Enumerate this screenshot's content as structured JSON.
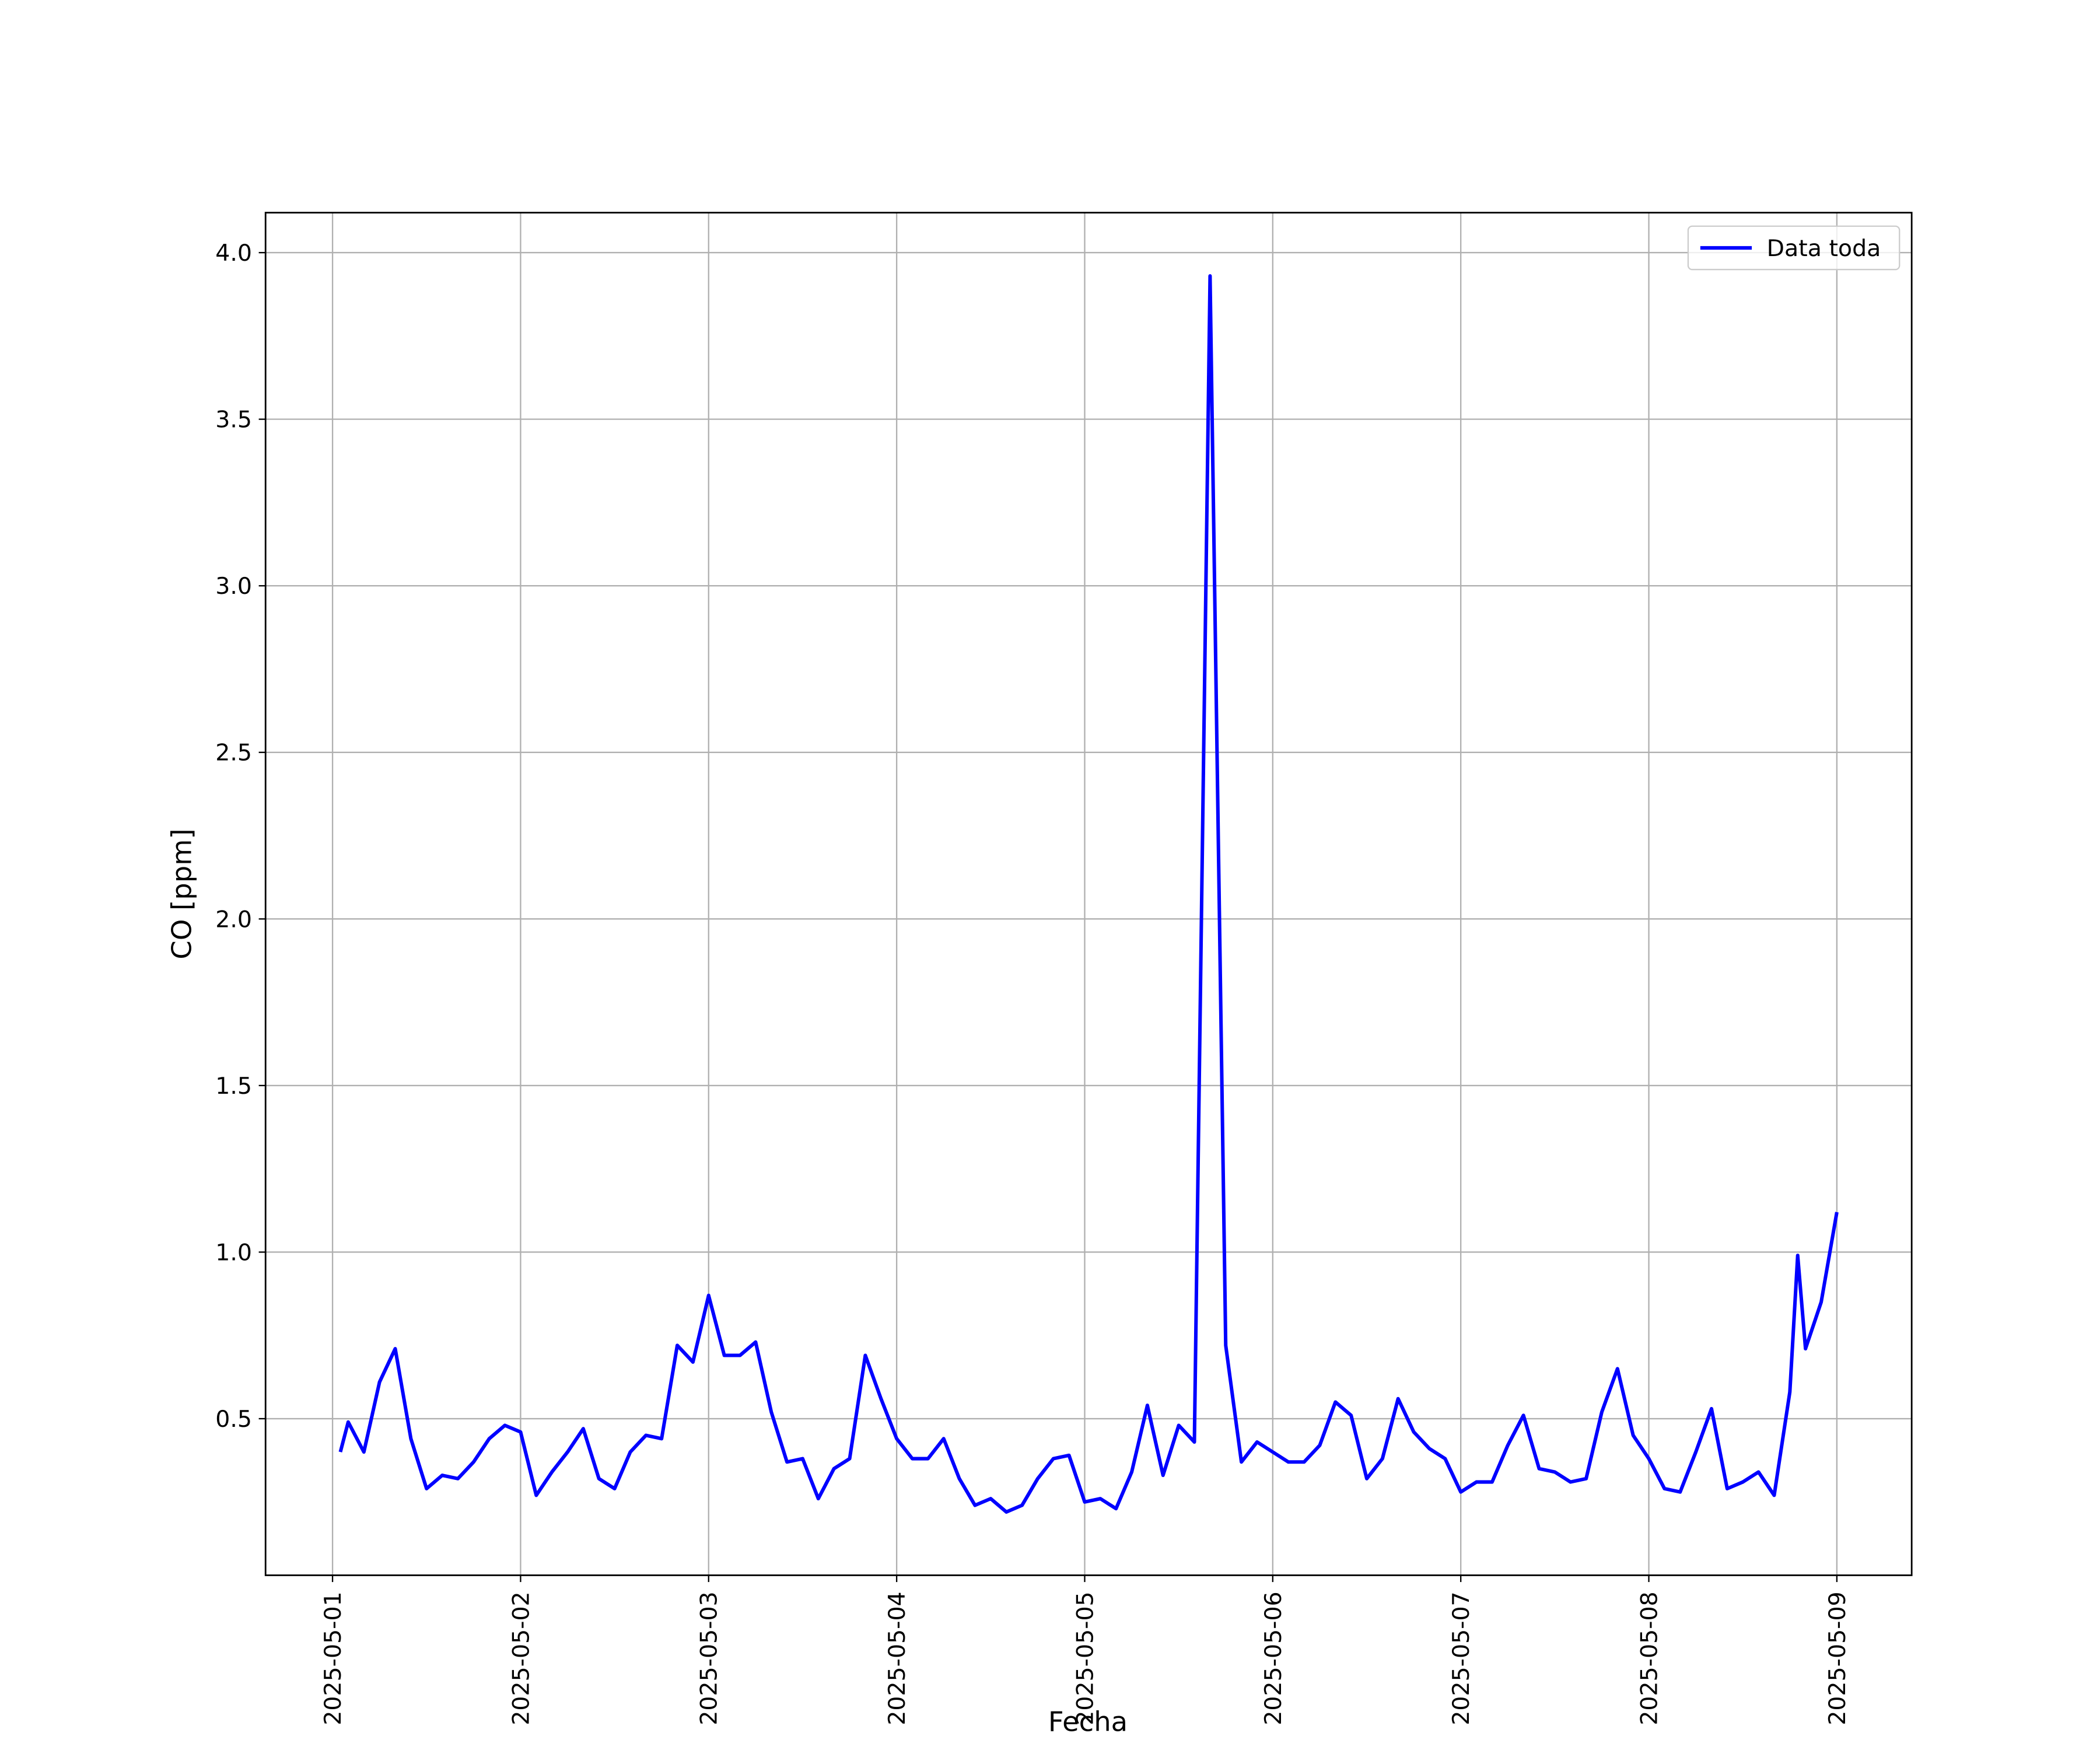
{
  "chart_data": {
    "type": "line",
    "xlabel": "Fecha",
    "ylabel": "CO [ppm]",
    "x": [
      "2025-05-01T01:00",
      "2025-05-01T02:00",
      "2025-05-01T04:00",
      "2025-05-01T06:00",
      "2025-05-01T08:00",
      "2025-05-01T10:00",
      "2025-05-01T12:00",
      "2025-05-01T14:00",
      "2025-05-01T16:00",
      "2025-05-01T18:00",
      "2025-05-01T20:00",
      "2025-05-01T22:00",
      "2025-05-02T00:00",
      "2025-05-02T02:00",
      "2025-05-02T04:00",
      "2025-05-02T06:00",
      "2025-05-02T08:00",
      "2025-05-02T10:00",
      "2025-05-02T12:00",
      "2025-05-02T14:00",
      "2025-05-02T16:00",
      "2025-05-02T18:00",
      "2025-05-02T20:00",
      "2025-05-02T22:00",
      "2025-05-03T00:00",
      "2025-05-03T02:00",
      "2025-05-03T04:00",
      "2025-05-03T06:00",
      "2025-05-03T08:00",
      "2025-05-03T10:00",
      "2025-05-03T12:00",
      "2025-05-03T14:00",
      "2025-05-03T16:00",
      "2025-05-03T18:00",
      "2025-05-03T20:00",
      "2025-05-03T22:00",
      "2025-05-04T00:00",
      "2025-05-04T02:00",
      "2025-05-04T04:00",
      "2025-05-04T06:00",
      "2025-05-04T08:00",
      "2025-05-04T10:00",
      "2025-05-04T12:00",
      "2025-05-04T14:00",
      "2025-05-04T16:00",
      "2025-05-04T18:00",
      "2025-05-04T20:00",
      "2025-05-04T22:00",
      "2025-05-05T00:00",
      "2025-05-05T02:00",
      "2025-05-05T04:00",
      "2025-05-05T06:00",
      "2025-05-05T08:00",
      "2025-05-05T10:00",
      "2025-05-05T12:00",
      "2025-05-05T14:00",
      "2025-05-05T16:00",
      "2025-05-05T18:00",
      "2025-05-05T20:00",
      "2025-05-05T22:00",
      "2025-05-06T00:00",
      "2025-05-06T02:00",
      "2025-05-06T04:00",
      "2025-05-06T06:00",
      "2025-05-06T08:00",
      "2025-05-06T10:00",
      "2025-05-06T12:00",
      "2025-05-06T14:00",
      "2025-05-06T16:00",
      "2025-05-06T18:00",
      "2025-05-06T20:00",
      "2025-05-06T22:00",
      "2025-05-07T00:00",
      "2025-05-07T02:00",
      "2025-05-07T04:00",
      "2025-05-07T06:00",
      "2025-05-07T08:00",
      "2025-05-07T10:00",
      "2025-05-07T12:00",
      "2025-05-07T14:00",
      "2025-05-07T16:00",
      "2025-05-07T18:00",
      "2025-05-07T20:00",
      "2025-05-07T22:00",
      "2025-05-08T00:00",
      "2025-05-08T02:00",
      "2025-05-08T04:00",
      "2025-05-08T06:00",
      "2025-05-08T08:00",
      "2025-05-08T10:00",
      "2025-05-08T12:00",
      "2025-05-08T14:00",
      "2025-05-08T16:00",
      "2025-05-08T18:00",
      "2025-05-08T19:00",
      "2025-05-08T20:00",
      "2025-05-08T22:00",
      "2025-05-09T00:00"
    ],
    "series": [
      {
        "name": "Data toda",
        "color": "#0000ff",
        "values": [
          0.4,
          0.49,
          0.4,
          0.61,
          0.71,
          0.44,
          0.29,
          0.33,
          0.32,
          0.37,
          0.44,
          0.48,
          0.46,
          0.27,
          0.34,
          0.4,
          0.47,
          0.32,
          0.29,
          0.4,
          0.45,
          0.44,
          0.72,
          0.67,
          0.87,
          0.69,
          0.69,
          0.73,
          0.52,
          0.37,
          0.38,
          0.26,
          0.35,
          0.38,
          0.69,
          0.56,
          0.44,
          0.38,
          0.38,
          0.44,
          0.32,
          0.24,
          0.26,
          0.22,
          0.24,
          0.32,
          0.38,
          0.39,
          0.25,
          0.26,
          0.23,
          0.34,
          0.54,
          0.33,
          0.48,
          0.43,
          3.93,
          0.72,
          0.37,
          0.43,
          0.4,
          0.37,
          0.37,
          0.42,
          0.55,
          0.51,
          0.32,
          0.38,
          0.56,
          0.46,
          0.41,
          0.38,
          0.28,
          0.31,
          0.31,
          0.42,
          0.51,
          0.35,
          0.34,
          0.31,
          0.32,
          0.52,
          0.65,
          0.45,
          0.38,
          0.29,
          0.28,
          0.4,
          0.53,
          0.29,
          0.31,
          0.34,
          0.27,
          0.58,
          0.99,
          0.71,
          0.85,
          1.12
        ]
      }
    ],
    "ylim": [
      0.03,
      4.12
    ],
    "yticks": [
      {
        "value": 0.5,
        "label": "0.5"
      },
      {
        "value": 1,
        "label": "1.0"
      },
      {
        "value": 1.5,
        "label": "1.5"
      },
      {
        "value": 2,
        "label": "2.0"
      },
      {
        "value": 2.5,
        "label": "2.5"
      },
      {
        "value": 3,
        "label": "3.0"
      },
      {
        "value": 3.5,
        "label": "3.5"
      },
      {
        "value": 4,
        "label": "4.0"
      }
    ],
    "xticks": [
      "2025-05-01",
      "2025-05-02",
      "2025-05-03",
      "2025-05-04",
      "2025-05-05",
      "2025-05-06",
      "2025-05-07",
      "2025-05-08",
      "2025-05-09"
    ],
    "grid": true,
    "legend": "upper right"
  }
}
